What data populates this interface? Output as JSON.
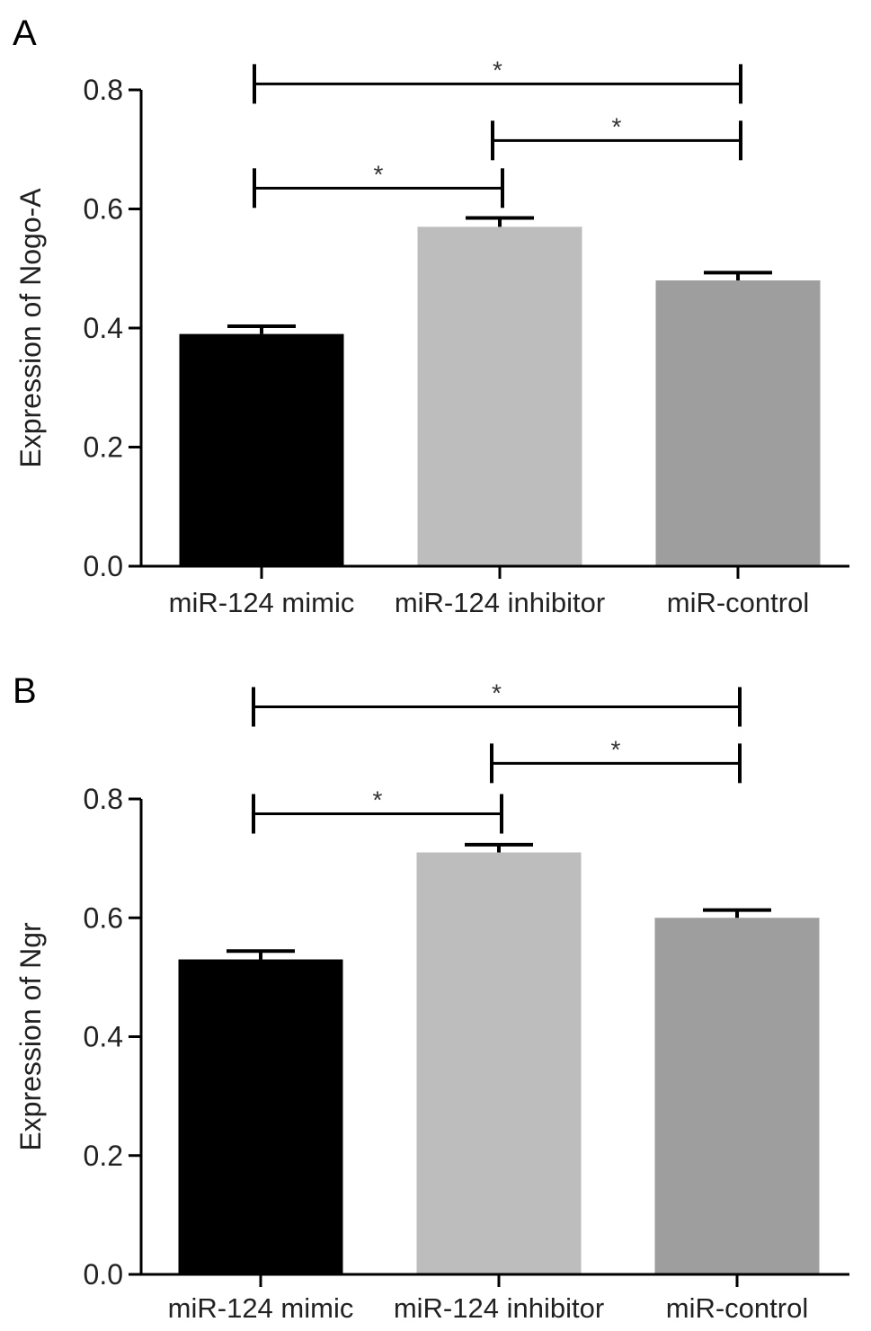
{
  "chart_data": [
    {
      "type": "bar",
      "panel_label": "A",
      "ylabel": "Expression of Nogo-A",
      "ylim": [
        0,
        0.8
      ],
      "yticks": [
        "0.0",
        "0.2",
        "0.4",
        "0.6",
        "0.8"
      ],
      "categories": [
        "miR-124 mimic",
        "miR-124 inhibitor",
        "miR-control"
      ],
      "values": [
        0.39,
        0.57,
        0.48
      ],
      "errors": [
        0.013,
        0.015,
        0.013
      ],
      "bar_colors": [
        "#000000",
        "#bdbdbd",
        "#9e9e9e"
      ],
      "significance": [
        {
          "from": 0,
          "to": 2,
          "level": 0.81,
          "label": "*"
        },
        {
          "from": 1,
          "to": 2,
          "level": 0.715,
          "label": "*"
        },
        {
          "from": 0,
          "to": 1,
          "level": 0.635,
          "label": "*"
        }
      ]
    },
    {
      "type": "bar",
      "panel_label": "B",
      "ylabel": "Expression of Ngr",
      "ylim": [
        0,
        0.8
      ],
      "yticks": [
        "0.0",
        "0.2",
        "0.4",
        "0.6",
        "0.8"
      ],
      "categories": [
        "miR-124 mimic",
        "miR-124 inhibitor",
        "miR-control"
      ],
      "values": [
        0.53,
        0.71,
        0.6
      ],
      "errors": [
        0.014,
        0.013,
        0.013
      ],
      "bar_colors": [
        "#000000",
        "#bdbdbd",
        "#9e9e9e"
      ],
      "significance": [
        {
          "from": 0,
          "to": 2,
          "level": 0.955,
          "label": "*"
        },
        {
          "from": 1,
          "to": 2,
          "level": 0.86,
          "label": "*"
        },
        {
          "from": 0,
          "to": 1,
          "level": 0.775,
          "label": "*"
        }
      ]
    }
  ]
}
